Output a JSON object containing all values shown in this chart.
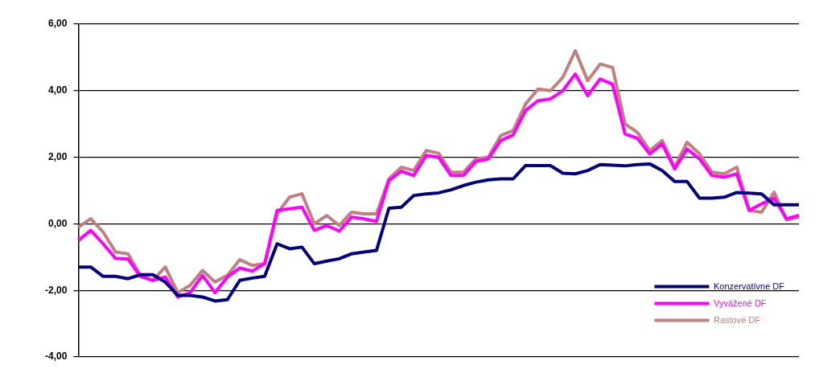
{
  "chart_data": {
    "type": "line",
    "categories": [
      null,
      null,
      null,
      null,
      null,
      null,
      null,
      null,
      null,
      null,
      null,
      null,
      null,
      null,
      null,
      null,
      null,
      null,
      null,
      null,
      null,
      null,
      null,
      null,
      null,
      null,
      null,
      null,
      null,
      null,
      null,
      null,
      null,
      null,
      null,
      null,
      null,
      null,
      null,
      null,
      null,
      null,
      null,
      null,
      null,
      null,
      null,
      null,
      null,
      null,
      null,
      null,
      null,
      null,
      null,
      null,
      null,
      null,
      null
    ],
    "series": [
      {
        "name": "Konzervatívne DF",
        "color": "#000080",
        "values": [
          -1.3,
          -1.3,
          -1.58,
          -1.58,
          -1.65,
          -1.53,
          -1.53,
          -1.75,
          -2.15,
          -2.15,
          -2.2,
          -2.32,
          -2.28,
          -1.7,
          -1.63,
          -1.58,
          -0.6,
          -0.75,
          -0.7,
          -1.2,
          -1.12,
          -1.05,
          -0.9,
          -0.85,
          -0.8,
          0.47,
          0.5,
          0.85,
          0.9,
          0.93,
          1.02,
          1.15,
          1.25,
          1.32,
          1.35,
          1.35,
          1.75,
          1.75,
          1.75,
          1.52,
          1.5,
          1.6,
          1.78,
          1.76,
          1.74,
          1.78,
          1.8,
          1.6,
          1.27,
          1.27,
          0.77,
          0.77,
          0.8,
          0.94,
          0.92,
          0.9,
          0.57,
          0.57,
          0.57
        ]
      },
      {
        "name": "Vyvážené DF",
        "color": "#ff00ff",
        "values": [
          -0.5,
          -0.2,
          -0.6,
          -1.04,
          -1.06,
          -1.58,
          -1.7,
          -1.6,
          -2.2,
          -2.07,
          -1.55,
          -2.07,
          -1.6,
          -1.33,
          -1.42,
          -1.2,
          0.4,
          0.45,
          0.5,
          -0.2,
          -0.05,
          -0.22,
          0.2,
          0.15,
          0.07,
          1.3,
          1.58,
          1.45,
          2.05,
          2.0,
          1.45,
          1.45,
          1.87,
          1.95,
          2.5,
          2.67,
          3.4,
          3.7,
          3.75,
          4.0,
          4.5,
          3.85,
          4.35,
          4.2,
          2.7,
          2.57,
          2.1,
          2.4,
          1.65,
          2.25,
          1.95,
          1.45,
          1.4,
          1.5,
          0.4,
          0.6,
          0.77,
          0.15,
          0.25
        ]
      },
      {
        "name": "Rastové DF",
        "color": "#c08080",
        "values": [
          -0.1,
          0.15,
          -0.25,
          -0.85,
          -0.9,
          -1.55,
          -1.7,
          -1.3,
          -2.07,
          -1.85,
          -1.4,
          -1.75,
          -1.55,
          -1.08,
          -1.25,
          -1.2,
          0.3,
          0.8,
          0.9,
          0.0,
          0.25,
          -0.05,
          0.35,
          0.3,
          0.3,
          1.35,
          1.7,
          1.6,
          2.2,
          2.12,
          1.55,
          1.55,
          1.95,
          2.0,
          2.65,
          2.8,
          3.6,
          4.05,
          4.0,
          4.4,
          5.2,
          4.3,
          4.8,
          4.7,
          3.0,
          2.75,
          2.2,
          2.5,
          1.7,
          2.45,
          2.1,
          1.55,
          1.5,
          1.7,
          0.4,
          0.35,
          0.95,
          0.12,
          0.2
        ]
      }
    ],
    "ylim": [
      -4,
      6
    ],
    "yticks": [
      {
        "value": -4,
        "label": "-4,00"
      },
      {
        "value": -2,
        "label": "-2,00"
      },
      {
        "value": 0,
        "label": "0,00"
      },
      {
        "value": 2,
        "label": "2,00"
      },
      {
        "value": 4,
        "label": "4,00"
      },
      {
        "value": 6,
        "label": "6,00"
      }
    ],
    "grid": "y",
    "legend": "bottom right",
    "tick_labels": "y",
    "marker": "none",
    "line_style": "solid"
  }
}
